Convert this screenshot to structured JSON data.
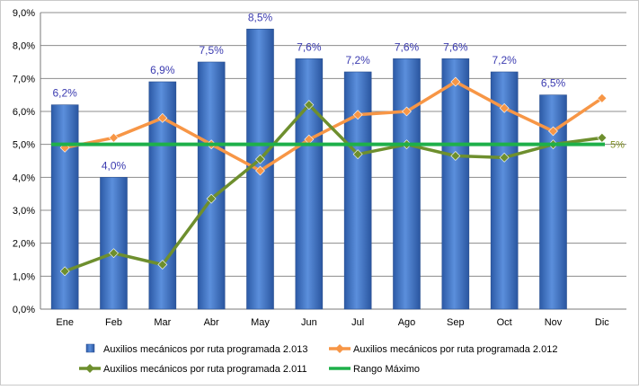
{
  "chart_data": {
    "type": "bar",
    "categories": [
      "Ene",
      "Feb",
      "Mar",
      "Abr",
      "May",
      "Jun",
      "Jul",
      "Ago",
      "Sep",
      "Oct",
      "Nov",
      "Dic"
    ],
    "ylim": [
      0,
      9
    ],
    "ytick_step": 1,
    "y_tick_labels": [
      "0,0%",
      "1,0%",
      "2,0%",
      "3,0%",
      "4,0%",
      "5,0%",
      "6,0%",
      "7,0%",
      "8,0%",
      "9,0%"
    ],
    "grid": true,
    "legend_position": "bottom",
    "series": [
      {
        "name": "Auxilios mecánicos por ruta programada 2.013",
        "kind": "bar",
        "color": "#3f73c6",
        "values": [
          6.2,
          4.0,
          6.9,
          7.5,
          8.5,
          7.6,
          7.2,
          7.6,
          7.6,
          7.2,
          6.5,
          null
        ],
        "labels": [
          "6,2%",
          "4,0%",
          "6,9%",
          "7,5%",
          "8,5%",
          "7,6%",
          "7,2%",
          "7,6%",
          "7,6%",
          "7,2%",
          "6,5%",
          ""
        ]
      },
      {
        "name": "Auxilios mecánicos por ruta programada 2.012",
        "kind": "line",
        "color": "#f79646",
        "values": [
          4.9,
          5.2,
          5.8,
          5.0,
          4.2,
          5.15,
          5.9,
          6.0,
          6.9,
          6.1,
          5.4,
          6.4
        ]
      },
      {
        "name": "Auxilios mecánicos por ruta programada 2.011",
        "kind": "line",
        "color": "#6e8f2e",
        "values": [
          1.15,
          1.7,
          1.35,
          3.35,
          4.55,
          6.2,
          4.7,
          5.0,
          4.65,
          4.6,
          5.0,
          5.2
        ]
      },
      {
        "name": "Rango Máximo",
        "kind": "line",
        "color": "#1eb04a",
        "values": [
          5,
          5,
          5,
          5,
          5,
          5,
          5,
          5,
          5,
          5,
          5,
          5
        ],
        "end_label": "5%"
      }
    ]
  }
}
